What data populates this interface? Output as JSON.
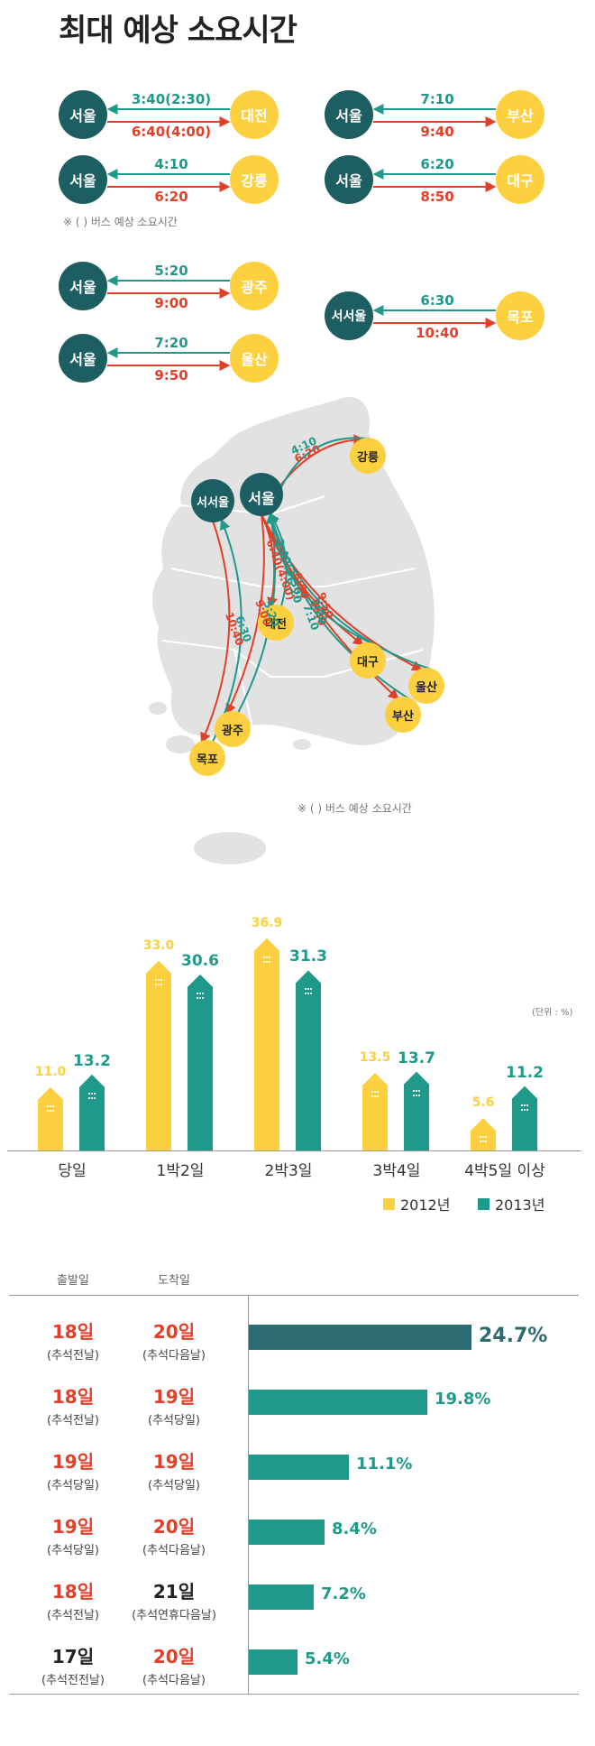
{
  "title": "최대 예상 소요시간",
  "colors": {
    "dark": "#1c5e61",
    "yellow": "#fdd03f",
    "teal": "#21988a",
    "red": "#e33f28",
    "c2012": "#fdd03f",
    "c2013": "#1f9a8a",
    "topbar": "#2e6b70"
  },
  "routes": [
    {
      "from": "서울",
      "to": "대전",
      "to_seoul": "3:40(2:30)",
      "from_seoul": "6:40(4:00)"
    },
    {
      "from": "서울",
      "to": "부산",
      "to_seoul": "7:10",
      "from_seoul": "9:40"
    },
    {
      "from": "서울",
      "to": "강릉",
      "to_seoul": "4:10",
      "from_seoul": "6:20"
    },
    {
      "from": "서울",
      "to": "대구",
      "to_seoul": "6:20",
      "from_seoul": "8:50"
    },
    {
      "from": "서울",
      "to": "광주",
      "to_seoul": "5:20",
      "from_seoul": "9:00"
    },
    {
      "from": "서서울",
      "to": "목포",
      "to_seoul": "6:30",
      "from_seoul": "10:40"
    },
    {
      "from": "서울",
      "to": "울산",
      "to_seoul": "7:20",
      "from_seoul": "9:50"
    }
  ],
  "bus_note": "※ (    ) 버스 예상 소요시간",
  "map": {
    "cities": [
      "서서울",
      "서울",
      "강릉",
      "대전",
      "대구",
      "울산",
      "부산",
      "광주",
      "목포"
    ],
    "note": "※ (    ) 버스 예상 소요시간"
  },
  "chart_data": [
    {
      "type": "bar",
      "categories": [
        "당일",
        "1박2일",
        "2박3일",
        "3박4일",
        "4박5일 이상"
      ],
      "series": [
        {
          "name": "2012년",
          "values": [
            11.0,
            33.0,
            36.9,
            13.5,
            5.6
          ]
        },
        {
          "name": "2013년",
          "values": [
            13.2,
            30.6,
            31.3,
            13.7,
            11.2
          ]
        }
      ],
      "value_labels": {
        "2012년": [
          "11.0",
          "33.0",
          "36.9",
          "13.5",
          "5.6"
        ],
        "2013년": [
          "13.2",
          "30.6",
          "31.3",
          "13.7",
          "11.2"
        ]
      },
      "unit": "(단위 : %)",
      "ylim": [
        0,
        40
      ],
      "legend": "bottom-right"
    },
    {
      "type": "bar",
      "orientation": "horizontal",
      "headers": {
        "departure": "출발일",
        "arrival": "도착일"
      },
      "rows": [
        {
          "dep": "18일",
          "dep_sub": "(추석전날)",
          "arr": "20일",
          "arr_sub": "(추석다음날)",
          "dep_hl": true,
          "arr_hl": true
        },
        {
          "dep": "18일",
          "dep_sub": "(추석전날)",
          "arr": "19일",
          "arr_sub": "(추석당일)",
          "dep_hl": true,
          "arr_hl": true
        },
        {
          "dep": "19일",
          "dep_sub": "(추석당일)",
          "arr": "19일",
          "arr_sub": "(추석당일)",
          "dep_hl": true,
          "arr_hl": true
        },
        {
          "dep": "19일",
          "dep_sub": "(추석당일)",
          "arr": "20일",
          "arr_sub": "(추석다음날)",
          "dep_hl": true,
          "arr_hl": true
        },
        {
          "dep": "18일",
          "dep_sub": "(추석전날)",
          "arr": "21일",
          "arr_sub": "(추석연휴다음날)",
          "dep_hl": true,
          "arr_hl": false
        },
        {
          "dep": "17일",
          "dep_sub": "(추석전전날)",
          "arr": "20일",
          "arr_sub": "(추석다음날)",
          "dep_hl": false,
          "arr_hl": true
        }
      ],
      "values": [
        24.7,
        19.8,
        11.1,
        8.4,
        7.2,
        5.4
      ],
      "value_labels": [
        "24.7%",
        "19.8%",
        "11.1%",
        "8.4%",
        "7.2%",
        "5.4%"
      ],
      "xlim": [
        0,
        30
      ]
    }
  ]
}
